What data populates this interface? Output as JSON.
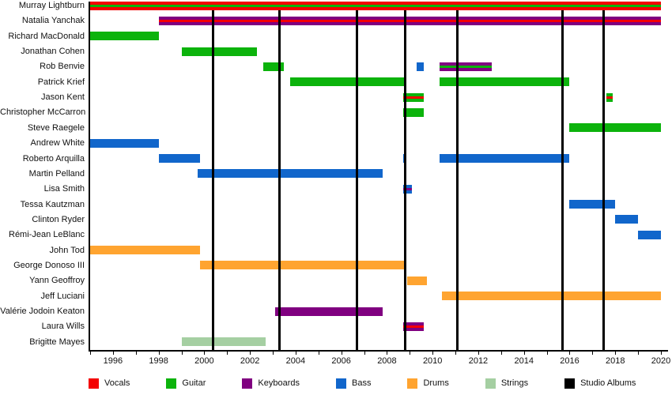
{
  "chart_data": {
    "type": "bar",
    "variant": "gantt-membership-timeline",
    "title": "",
    "x_axis": {
      "min": 1995,
      "max": 2020,
      "tick_step_years": 1,
      "label_step_years": 2,
      "labels": [
        "1996",
        "1998",
        "2000",
        "2002",
        "2004",
        "2006",
        "2008",
        "2010",
        "2012",
        "2014",
        "2016",
        "2018",
        "2020"
      ]
    },
    "colors": {
      "vocals": "#f40000",
      "guitar": "#0cb30c",
      "keyboards": "#800080",
      "bass": "#1166cb",
      "drums": "#ffa430",
      "strings": "#a5cfa2",
      "studio_albums": "#000000"
    },
    "legend": [
      {
        "label": "Vocals",
        "role": "vocals"
      },
      {
        "label": "Guitar",
        "role": "guitar"
      },
      {
        "label": "Keyboards",
        "role": "keyboards"
      },
      {
        "label": "Bass",
        "role": "bass"
      },
      {
        "label": "Drums",
        "role": "drums"
      },
      {
        "label": "Strings",
        "role": "strings"
      },
      {
        "label": "Studio Albums",
        "role": "studio_albums"
      }
    ],
    "album_release_lines": [
      2000.4,
      2003.3,
      2006.7,
      2008.8,
      2011.1,
      2015.7,
      2017.5
    ],
    "members": [
      {
        "name": "Murray Lightburn",
        "segments": [
          {
            "start": 1995.0,
            "end": 2020.0,
            "roles": [
              "vocals",
              "guitar"
            ]
          }
        ]
      },
      {
        "name": "Natalia Yanchak",
        "segments": [
          {
            "start": 1998.0,
            "end": 2020.0,
            "roles": [
              "keyboards",
              "vocals"
            ]
          }
        ]
      },
      {
        "name": "Richard MacDonald",
        "segments": [
          {
            "start": 1995.0,
            "end": 1998.0,
            "roles": [
              "guitar"
            ]
          }
        ]
      },
      {
        "name": "Jonathan Cohen",
        "segments": [
          {
            "start": 1999.0,
            "end": 2002.3,
            "roles": [
              "guitar"
            ]
          }
        ]
      },
      {
        "name": "Rob Benvie",
        "segments": [
          {
            "start": 2002.6,
            "end": 2003.5,
            "roles": [
              "guitar"
            ]
          },
          {
            "start": 2009.3,
            "end": 2009.6,
            "roles": [
              "bass"
            ]
          },
          {
            "start": 2010.3,
            "end": 2012.6,
            "roles": [
              "keyboards",
              "guitar"
            ]
          }
        ]
      },
      {
        "name": "Patrick Krief",
        "segments": [
          {
            "start": 2003.75,
            "end": 2008.8,
            "roles": [
              "guitar"
            ]
          },
          {
            "start": 2010.3,
            "end": 2016.0,
            "roles": [
              "guitar"
            ]
          }
        ]
      },
      {
        "name": "Jason Kent",
        "segments": [
          {
            "start": 2008.7,
            "end": 2009.6,
            "roles": [
              "guitar",
              "vocals"
            ]
          },
          {
            "start": 2017.6,
            "end": 2017.9,
            "roles": [
              "guitar",
              "vocals"
            ]
          }
        ]
      },
      {
        "name": "Christopher McCarron",
        "segments": [
          {
            "start": 2008.7,
            "end": 2009.6,
            "roles": [
              "guitar"
            ]
          }
        ]
      },
      {
        "name": "Steve Raegele",
        "segments": [
          {
            "start": 2016.0,
            "end": 2020.0,
            "roles": [
              "guitar"
            ]
          }
        ]
      },
      {
        "name": "Andrew White",
        "segments": [
          {
            "start": 1995.0,
            "end": 1998.0,
            "roles": [
              "bass"
            ]
          }
        ]
      },
      {
        "name": "Roberto Arquilla",
        "segments": [
          {
            "start": 1998.0,
            "end": 1999.8,
            "roles": [
              "bass"
            ]
          },
          {
            "start": 2008.7,
            "end": 2008.85,
            "roles": [
              "bass"
            ]
          },
          {
            "start": 2010.3,
            "end": 2016.0,
            "roles": [
              "bass"
            ]
          }
        ]
      },
      {
        "name": "Martin Pelland",
        "segments": [
          {
            "start": 1999.7,
            "end": 2007.8,
            "roles": [
              "bass"
            ]
          }
        ]
      },
      {
        "name": "Lisa Smith",
        "segments": [
          {
            "start": 2008.7,
            "end": 2009.1,
            "roles": [
              "bass",
              "keyboards"
            ]
          }
        ]
      },
      {
        "name": "Tessa Kautzman",
        "segments": [
          {
            "start": 2016.0,
            "end": 2018.0,
            "roles": [
              "bass"
            ]
          }
        ]
      },
      {
        "name": "Clinton Ryder",
        "segments": [
          {
            "start": 2018.0,
            "end": 2019.0,
            "roles": [
              "bass"
            ]
          }
        ]
      },
      {
        "name": "Rémi-Jean LeBlanc",
        "segments": [
          {
            "start": 2019.0,
            "end": 2020.0,
            "roles": [
              "bass"
            ]
          }
        ]
      },
      {
        "name": "John Tod",
        "segments": [
          {
            "start": 1995.0,
            "end": 1999.8,
            "roles": [
              "drums"
            ]
          }
        ]
      },
      {
        "name": "George Donoso III",
        "segments": [
          {
            "start": 1999.8,
            "end": 2008.8,
            "roles": [
              "drums"
            ]
          }
        ]
      },
      {
        "name": "Yann Geoffroy",
        "segments": [
          {
            "start": 2008.9,
            "end": 2009.75,
            "roles": [
              "drums"
            ]
          }
        ]
      },
      {
        "name": "Jeff Luciani",
        "segments": [
          {
            "start": 2010.4,
            "end": 2020.0,
            "roles": [
              "drums"
            ]
          }
        ]
      },
      {
        "name": "Valérie Jodoin Keaton",
        "segments": [
          {
            "start": 2003.1,
            "end": 2007.8,
            "roles": [
              "keyboards"
            ]
          }
        ]
      },
      {
        "name": "Laura Wills",
        "segments": [
          {
            "start": 2008.7,
            "end": 2009.6,
            "roles": [
              "keyboards",
              "vocals"
            ]
          }
        ]
      },
      {
        "name": "Brigitte Mayes",
        "segments": [
          {
            "start": 1999.0,
            "end": 2002.7,
            "roles": [
              "strings"
            ]
          }
        ]
      }
    ]
  }
}
